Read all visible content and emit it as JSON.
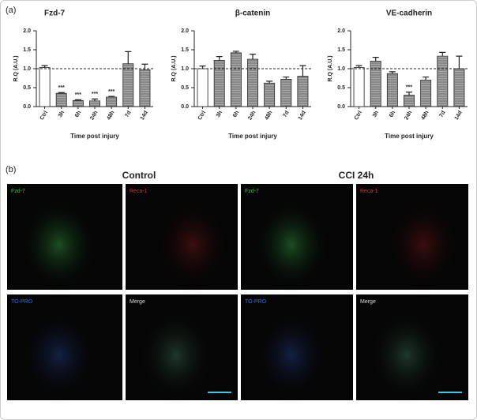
{
  "panel_a_label": "(a)",
  "chart_data": [
    {
      "type": "bar",
      "title": "Fzd-7",
      "y_label": "R.Q (A.U.)",
      "x_label": "Time post injury",
      "categories": [
        "Ctrl",
        "3h",
        "6h",
        "24h",
        "48h",
        "7d",
        "14d"
      ],
      "values": [
        1.03,
        0.35,
        0.16,
        0.15,
        0.25,
        1.13,
        0.97
      ],
      "errors": [
        0.05,
        0.02,
        0.02,
        0.05,
        0.02,
        0.32,
        0.15
      ],
      "bar_colors": [
        "#ffffff",
        "#a8a8a8",
        "#a8a8a8",
        "#a8a8a8",
        "#a8a8a8",
        "#a8a8a8",
        "#a8a8a8"
      ],
      "annotations": [
        {
          "x": "3h",
          "text": "***"
        },
        {
          "x": "6h",
          "text": "***"
        },
        {
          "x": "24h",
          "text": "***"
        },
        {
          "x": "48h",
          "text": "***"
        }
      ],
      "reference_line": 1,
      "ylim": [
        0,
        2
      ],
      "yticks": [
        {
          "value": 0,
          "label": "0.0"
        },
        0.5,
        {
          "value": 1,
          "label": "1.0"
        },
        1.5,
        {
          "value": 2,
          "label": "2.0"
        }
      ]
    },
    {
      "type": "bar",
      "title": "β-catenin",
      "y_label": "R.Q (A.U.)",
      "x_label": "Time post injury",
      "categories": [
        "Ctrl",
        "3h",
        "6h",
        "24h",
        "48h",
        "7d",
        "14d"
      ],
      "values": [
        1.0,
        1.22,
        1.42,
        1.25,
        0.62,
        0.72,
        0.8
      ],
      "errors": [
        0.07,
        0.1,
        0.04,
        0.13,
        0.05,
        0.06,
        0.28
      ],
      "bar_colors": [
        "#ffffff",
        "#a8a8a8",
        "#a8a8a8",
        "#a8a8a8",
        "#a8a8a8",
        "#a8a8a8",
        "#a8a8a8"
      ],
      "annotations": [],
      "reference_line": 1,
      "ylim": [
        0,
        2
      ],
      "yticks": [
        {
          "value": 0,
          "label": "0.0"
        },
        0.5,
        {
          "value": 1,
          "label": "1.0"
        },
        1.5,
        {
          "value": 2,
          "label": "2.0"
        }
      ]
    },
    {
      "type": "bar",
      "title": "VE-cadherin",
      "y_label": "R.Q (A.U.)",
      "x_label": "Time post injury",
      "categories": [
        "Ctrl",
        "3h",
        "6h",
        "24h",
        "48h",
        "7d",
        "14d"
      ],
      "values": [
        1.03,
        1.2,
        0.87,
        0.3,
        0.7,
        1.33,
        1.0
      ],
      "errors": [
        0.05,
        0.1,
        0.05,
        0.08,
        0.08,
        0.1,
        0.33
      ],
      "bar_colors": [
        "#ffffff",
        "#a8a8a8",
        "#a8a8a8",
        "#a8a8a8",
        "#a8a8a8",
        "#a8a8a8",
        "#a8a8a8"
      ],
      "annotations": [
        {
          "x": "24h",
          "text": "***"
        }
      ],
      "reference_line": 1,
      "ylim": [
        0,
        2
      ],
      "yticks": [
        {
          "value": 0,
          "label": "0.0"
        },
        0.5,
        {
          "value": 1,
          "label": "1.0"
        },
        1.5,
        {
          "value": 2,
          "label": "2.0"
        }
      ]
    }
  ],
  "panel_b": {
    "label": "(b)",
    "groups": [
      {
        "title": "Control",
        "images": [
          {
            "label": "Fzd-7",
            "color": "#3dbb4a"
          },
          {
            "label": "Reca-1",
            "color": "#e03030"
          },
          {
            "label": "TO-PRO",
            "color": "#3a6ee0"
          },
          {
            "label": "Merge",
            "color": "#dddddd"
          }
        ]
      },
      {
        "title": "CCI 24h",
        "images": [
          {
            "label": "Fzd-7",
            "color": "#3dbb4a"
          },
          {
            "label": "Reca-1",
            "color": "#e03030"
          },
          {
            "label": "TO-PRO",
            "color": "#3a6ee0"
          },
          {
            "label": "Merge",
            "color": "#dddddd"
          }
        ]
      }
    ]
  }
}
